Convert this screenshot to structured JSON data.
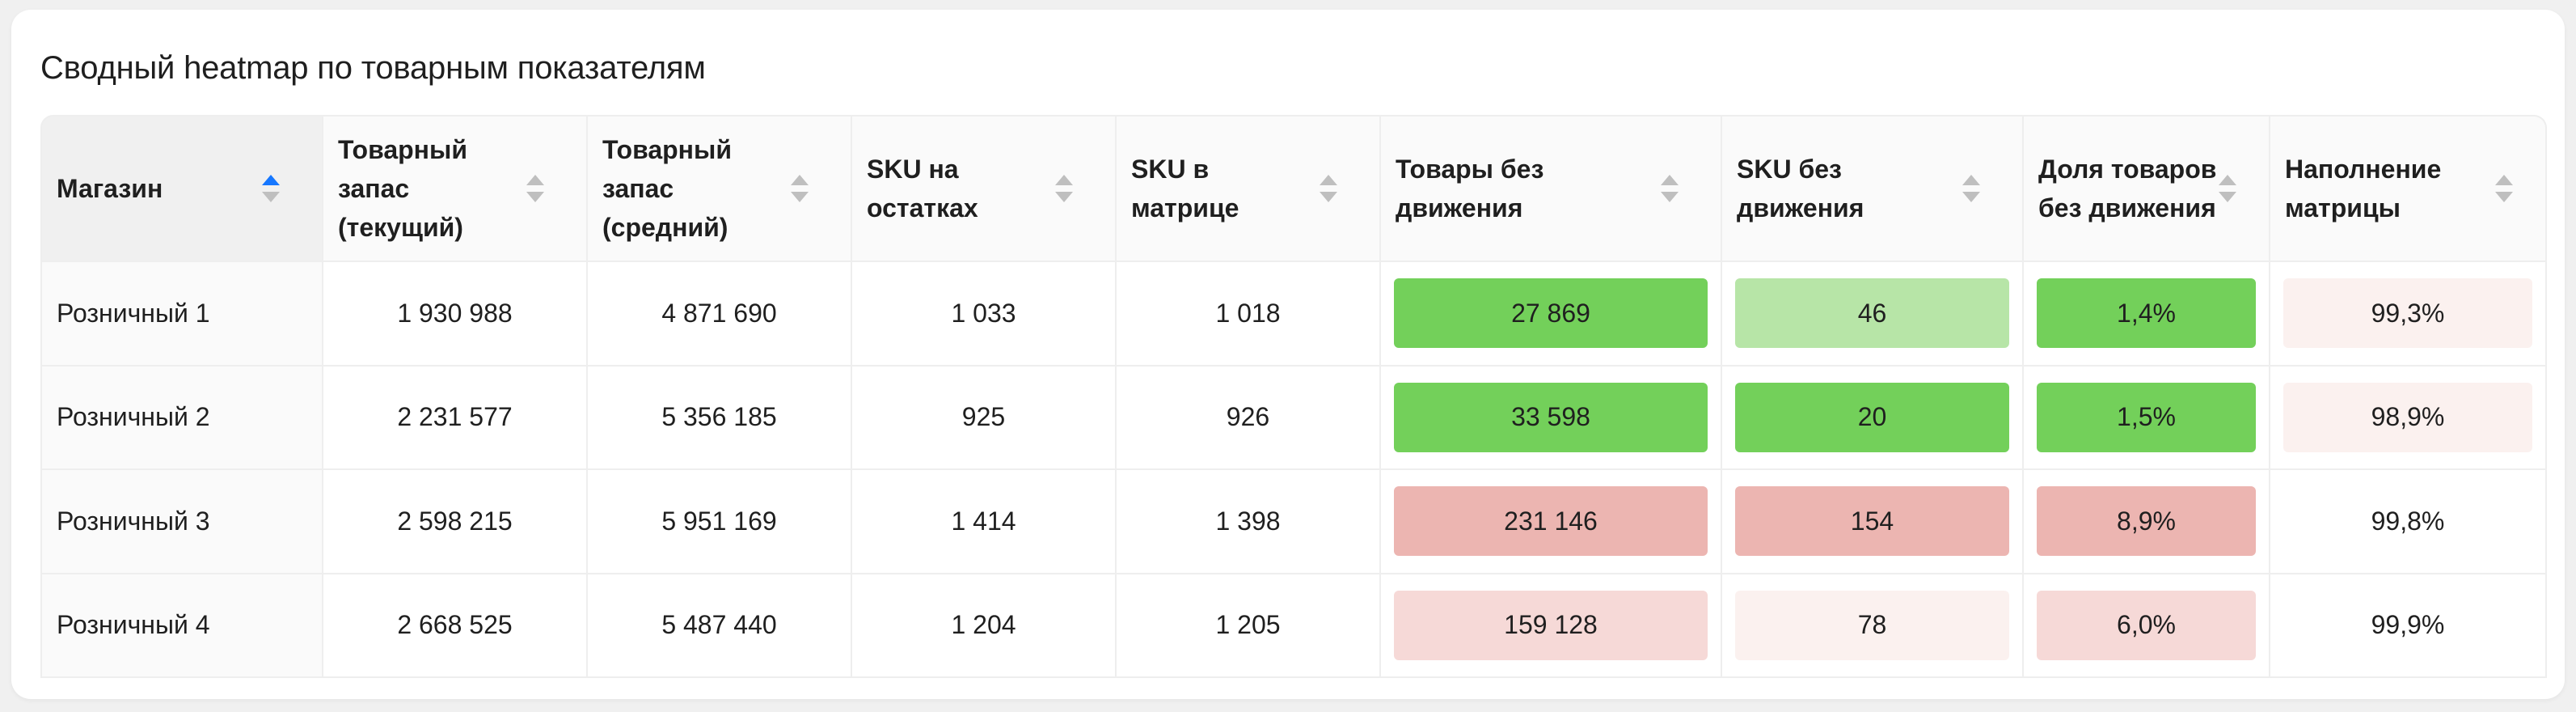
{
  "title": "Сводный heatmap по товарным показателям",
  "columns": [
    {
      "label": "Магазин"
    },
    {
      "label": "Товарный запас (текущий)"
    },
    {
      "label": "Товарный запас (средний)"
    },
    {
      "label": "SKU на остатках"
    },
    {
      "label": "SKU в матрице"
    },
    {
      "label": "Товары без движения"
    },
    {
      "label": "SKU без движения"
    },
    {
      "label": "Доля товаров без движения"
    },
    {
      "label": "Наполнение матрицы"
    }
  ],
  "colors": {
    "green_strong": "#73d05a",
    "green_light": "#b7e5a7",
    "red_strong": "#ecb5b1",
    "red_light": "#f6d9d7",
    "red_faint": "#fbf1ef",
    "sort_active": "#1677ff"
  },
  "rows": [
    {
      "store": "Розничный 1",
      "stock_current": "1 930 988",
      "stock_avg": "4 871 690",
      "sku_stock": "1 033",
      "sku_matrix": "1 018",
      "no_move_goods": {
        "value": "27 869",
        "color": "#73d05a"
      },
      "no_move_sku": {
        "value": "46",
        "color": "#b7e5a7"
      },
      "no_move_share": {
        "value": "1,4%",
        "color": "#73d05a"
      },
      "matrix_fill": {
        "value": "99,3%",
        "color": "#fbf1ef"
      }
    },
    {
      "store": "Розничный 2",
      "stock_current": "2 231 577",
      "stock_avg": "5 356 185",
      "sku_stock": "925",
      "sku_matrix": "926",
      "no_move_goods": {
        "value": "33 598",
        "color": "#73d05a"
      },
      "no_move_sku": {
        "value": "20",
        "color": "#73d05a"
      },
      "no_move_share": {
        "value": "1,5%",
        "color": "#73d05a"
      },
      "matrix_fill": {
        "value": "98,9%",
        "color": "#fbf1ef"
      }
    },
    {
      "store": "Розничный 3",
      "stock_current": "2 598 215",
      "stock_avg": "5 951 169",
      "sku_stock": "1 414",
      "sku_matrix": "1 398",
      "no_move_goods": {
        "value": "231 146",
        "color": "#ecb5b1"
      },
      "no_move_sku": {
        "value": "154",
        "color": "#ecb5b1"
      },
      "no_move_share": {
        "value": "8,9%",
        "color": "#ecb5b1"
      },
      "matrix_fill": {
        "value": "99,8%",
        "color": ""
      }
    },
    {
      "store": "Розничный 4",
      "stock_current": "2 668 525",
      "stock_avg": "5 487 440",
      "sku_stock": "1 204",
      "sku_matrix": "1 205",
      "no_move_goods": {
        "value": "159 128",
        "color": "#f6d9d7"
      },
      "no_move_sku": {
        "value": "78",
        "color": "#fbf1ef"
      },
      "no_move_share": {
        "value": "6,0%",
        "color": "#f6d9d7"
      },
      "matrix_fill": {
        "value": "99,9%",
        "color": ""
      }
    }
  ]
}
